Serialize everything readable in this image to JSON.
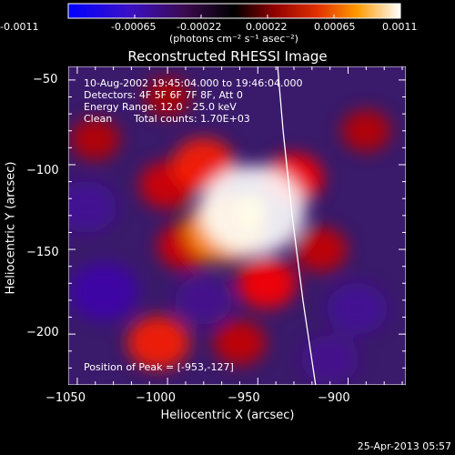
{
  "colorbar": {
    "ticks": [
      "-0.0011",
      "-0.00065",
      "-0.00022",
      "0.00022",
      "0.00065",
      "0.0011"
    ],
    "unit_label": "(photons cm⁻² s⁻¹ asec⁻²)"
  },
  "chart_data": {
    "type": "heatmap",
    "title": "Reconstructed RHESSI Image",
    "xlabel": "Heliocentric X (arcsec)",
    "ylabel": "Heliocentric Y (arcsec)",
    "xlim": [
      -1055,
      -868
    ],
    "ylim": [
      -230,
      -42
    ],
    "xticks": [
      -1050,
      -1000,
      -950,
      -900
    ],
    "xtick_labels": [
      "−1050",
      "−1000",
      "−950",
      "−900"
    ],
    "yticks": [
      -50,
      -100,
      -150,
      -200
    ],
    "ytick_labels": [
      "−50",
      "−100",
      "−150",
      "−200"
    ],
    "colorbar_range": [
      -0.0011,
      0.0011
    ],
    "colormap": [
      "#0000ff",
      "#5a0078",
      "#000000",
      "#c00000",
      "#ff7000",
      "#ffff60",
      "#ffffff"
    ],
    "peak": [
      -953,
      -127
    ],
    "limb_curve": [
      [
        -939,
        -42
      ],
      [
        -936,
        -80
      ],
      [
        -931,
        -130
      ],
      [
        -925,
        -180
      ],
      [
        -918,
        -230
      ]
    ],
    "sources": [
      {
        "x": -953,
        "y": -127,
        "value": 0.0011
      },
      {
        "x": -968,
        "y": -138,
        "value": 0.0007
      },
      {
        "x": -980,
        "y": -100,
        "value": 0.00045
      },
      {
        "x": -1000,
        "y": -112,
        "value": 0.00035
      },
      {
        "x": -930,
        "y": -108,
        "value": 0.0004
      },
      {
        "x": -990,
        "y": -148,
        "value": 0.00035
      },
      {
        "x": -945,
        "y": -170,
        "value": 0.0004
      },
      {
        "x": -915,
        "y": -150,
        "value": 0.0003
      },
      {
        "x": -1005,
        "y": -205,
        "value": 0.00045
      },
      {
        "x": -960,
        "y": -205,
        "value": 0.0003
      },
      {
        "x": -1040,
        "y": -85,
        "value": 0.00025
      },
      {
        "x": -1000,
        "y": -60,
        "value": 0.0002
      },
      {
        "x": -890,
        "y": -80,
        "value": 0.00025
      },
      {
        "x": -1035,
        "y": -175,
        "value": -0.00065
      },
      {
        "x": -1045,
        "y": -125,
        "value": -0.0004
      },
      {
        "x": -895,
        "y": -185,
        "value": -0.0004
      },
      {
        "x": -980,
        "y": -180,
        "value": -0.0003
      },
      {
        "x": -910,
        "y": -215,
        "value": -0.0003
      }
    ],
    "annotations": {
      "time_range": "10-Aug-2002 19:45:04.000 to 19:46:04.000",
      "detectors": "Detectors: 4F 5F 6F 7F 8F, Att 0",
      "energy": "Energy Range: 12.0 - 25.0 keV",
      "method": "Clean",
      "counts": "Total counts: 1.70E+03",
      "peak_text": "Position of Peak = [-953,-127]"
    }
  },
  "footer": {
    "date": "25-Apr-2013 05:57"
  }
}
